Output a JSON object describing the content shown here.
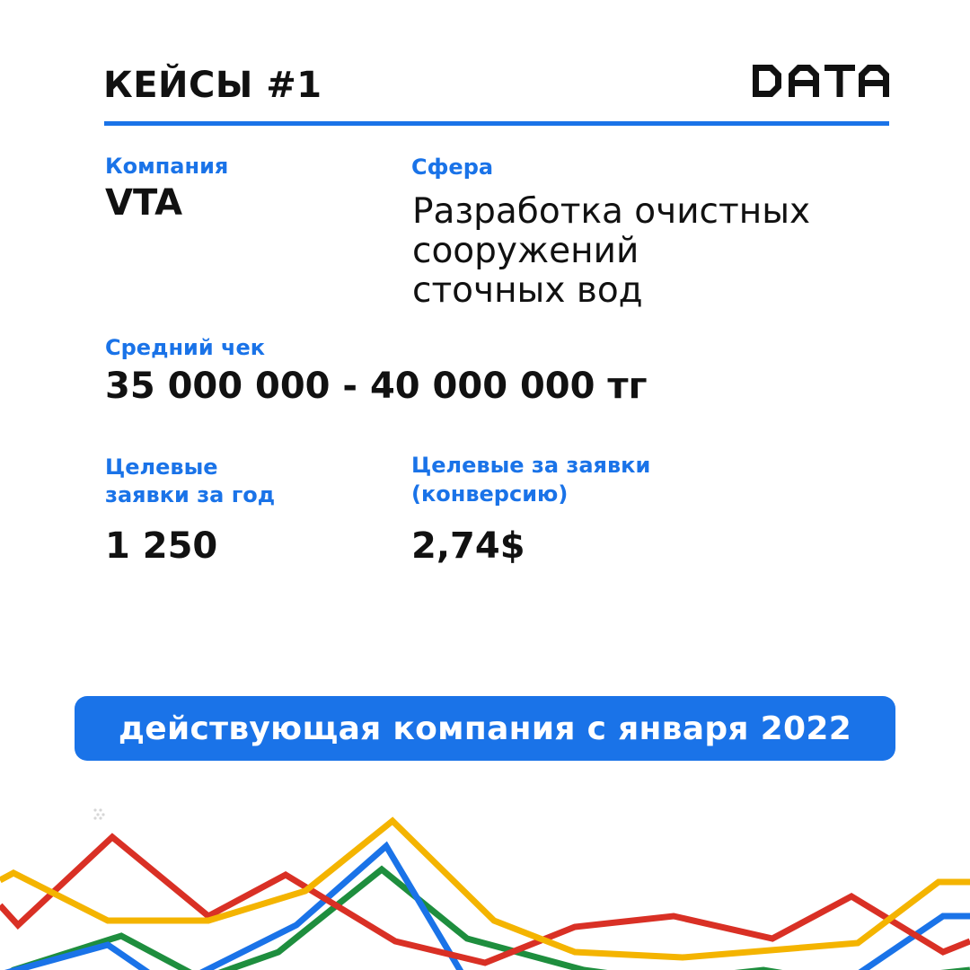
{
  "header": {
    "title": "КЕЙСЫ #1",
    "logo_text": "DATA"
  },
  "company": {
    "label": "Компания",
    "value": "VTA"
  },
  "sphere": {
    "label": "Сфера",
    "lines": [
      "Разработка очистных",
      "сооружений",
      "сточных вод"
    ]
  },
  "avg_check": {
    "label": "Средний чек",
    "value": "35 000 000 - 40 000 000 тг"
  },
  "target_leads": {
    "label_lines": [
      "Целевые",
      "заявки за год"
    ],
    "value": "1 250"
  },
  "cost_per_lead": {
    "label_lines": [
      "Целевые за заявки",
      "(конверсию)"
    ],
    "value": "2,74$"
  },
  "banner": {
    "text": "действующая компания с января 2022"
  },
  "colors": {
    "accent": "#1a73e8",
    "text": "#111111",
    "line_red": "#d93025",
    "line_yellow": "#f4b400",
    "line_blue": "#1a73e8",
    "line_green": "#1e8e3e"
  }
}
